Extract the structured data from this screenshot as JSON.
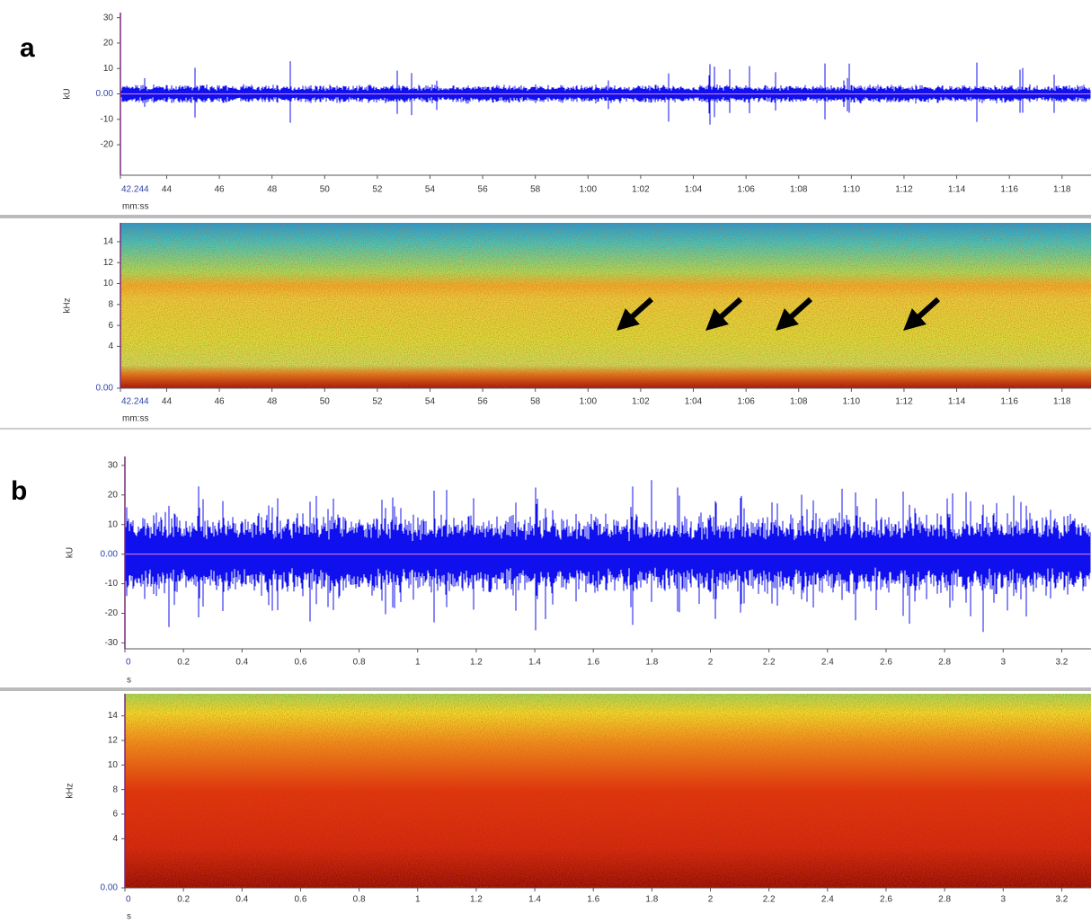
{
  "chart_data": [
    {
      "type": "line",
      "panel_label": "a",
      "y_label": "kU",
      "x_label": "mm:ss",
      "ylim": [
        -32,
        32
      ],
      "yticks": [
        30,
        20,
        10,
        {
          "value": 0,
          "label": "0.00"
        },
        -10,
        -20
      ],
      "xlim": [
        42.244,
        79.1
      ],
      "xticks": [
        42.244,
        44,
        46,
        48,
        50,
        52,
        54,
        56,
        58,
        {
          "value": 60,
          "label": "1:00"
        },
        {
          "value": 62,
          "label": "1:02"
        },
        {
          "value": 64,
          "label": "1:04"
        },
        {
          "value": 66,
          "label": "1:06"
        },
        {
          "value": 68,
          "label": "1:08"
        },
        {
          "value": 70,
          "label": "1:10"
        },
        {
          "value": 72,
          "label": "1:12"
        },
        {
          "value": 74,
          "label": "1:14"
        },
        {
          "value": 76,
          "label": "1:16"
        },
        {
          "value": 78,
          "label": "1:18"
        }
      ],
      "color": "#1010ee"
    },
    {
      "type": "heatmap",
      "y_label": "kHz",
      "x_label": "mm:ss",
      "ylim": [
        0,
        15.8
      ],
      "yticks": [
        14,
        12,
        10,
        8,
        6,
        4,
        {
          "value": 0,
          "label": "0.00"
        }
      ],
      "xlim": [
        42.244,
        79.1
      ],
      "xticks": [
        42.244,
        44,
        46,
        48,
        50,
        52,
        54,
        56,
        58,
        {
          "value": 60,
          "label": "1:00"
        },
        {
          "value": 62,
          "label": "1:02"
        },
        {
          "value": 64,
          "label": "1:04"
        },
        {
          "value": 66,
          "label": "1:06"
        },
        {
          "value": 68,
          "label": "1:08"
        },
        {
          "value": 70,
          "label": "1:10"
        },
        {
          "value": 72,
          "label": "1:12"
        },
        {
          "value": 74,
          "label": "1:14"
        },
        {
          "value": 76,
          "label": "1:16"
        },
        {
          "value": 78,
          "label": "1:18"
        }
      ]
    },
    {
      "type": "line",
      "panel_label": "b",
      "y_label": "kU",
      "x_label": "s",
      "ylim": [
        -32,
        33
      ],
      "yticks": [
        30,
        20,
        10,
        {
          "value": 0,
          "label": "0.00"
        },
        -10,
        -20,
        -30
      ],
      "xlim": [
        0,
        3.3
      ],
      "xticks": [
        0,
        0.2,
        0.4,
        0.6,
        0.8,
        1,
        1.2,
        1.4,
        1.6,
        1.8,
        2,
        2.2,
        2.4,
        2.6,
        2.8,
        3,
        3.2
      ],
      "color": "#1010ee"
    },
    {
      "type": "heatmap",
      "y_label": "kHz",
      "x_label": "s",
      "ylim": [
        0,
        15.8
      ],
      "yticks": [
        14,
        12,
        10,
        8,
        6,
        4,
        {
          "value": 0,
          "label": "0.00"
        }
      ],
      "xlim": [
        0,
        3.3
      ],
      "xticks": [
        0,
        0.2,
        0.4,
        0.6,
        0.8,
        1,
        1.2,
        1.4,
        1.6,
        1.8,
        2,
        2.2,
        2.4,
        2.6,
        2.8,
        3,
        3.2
      ]
    }
  ]
}
